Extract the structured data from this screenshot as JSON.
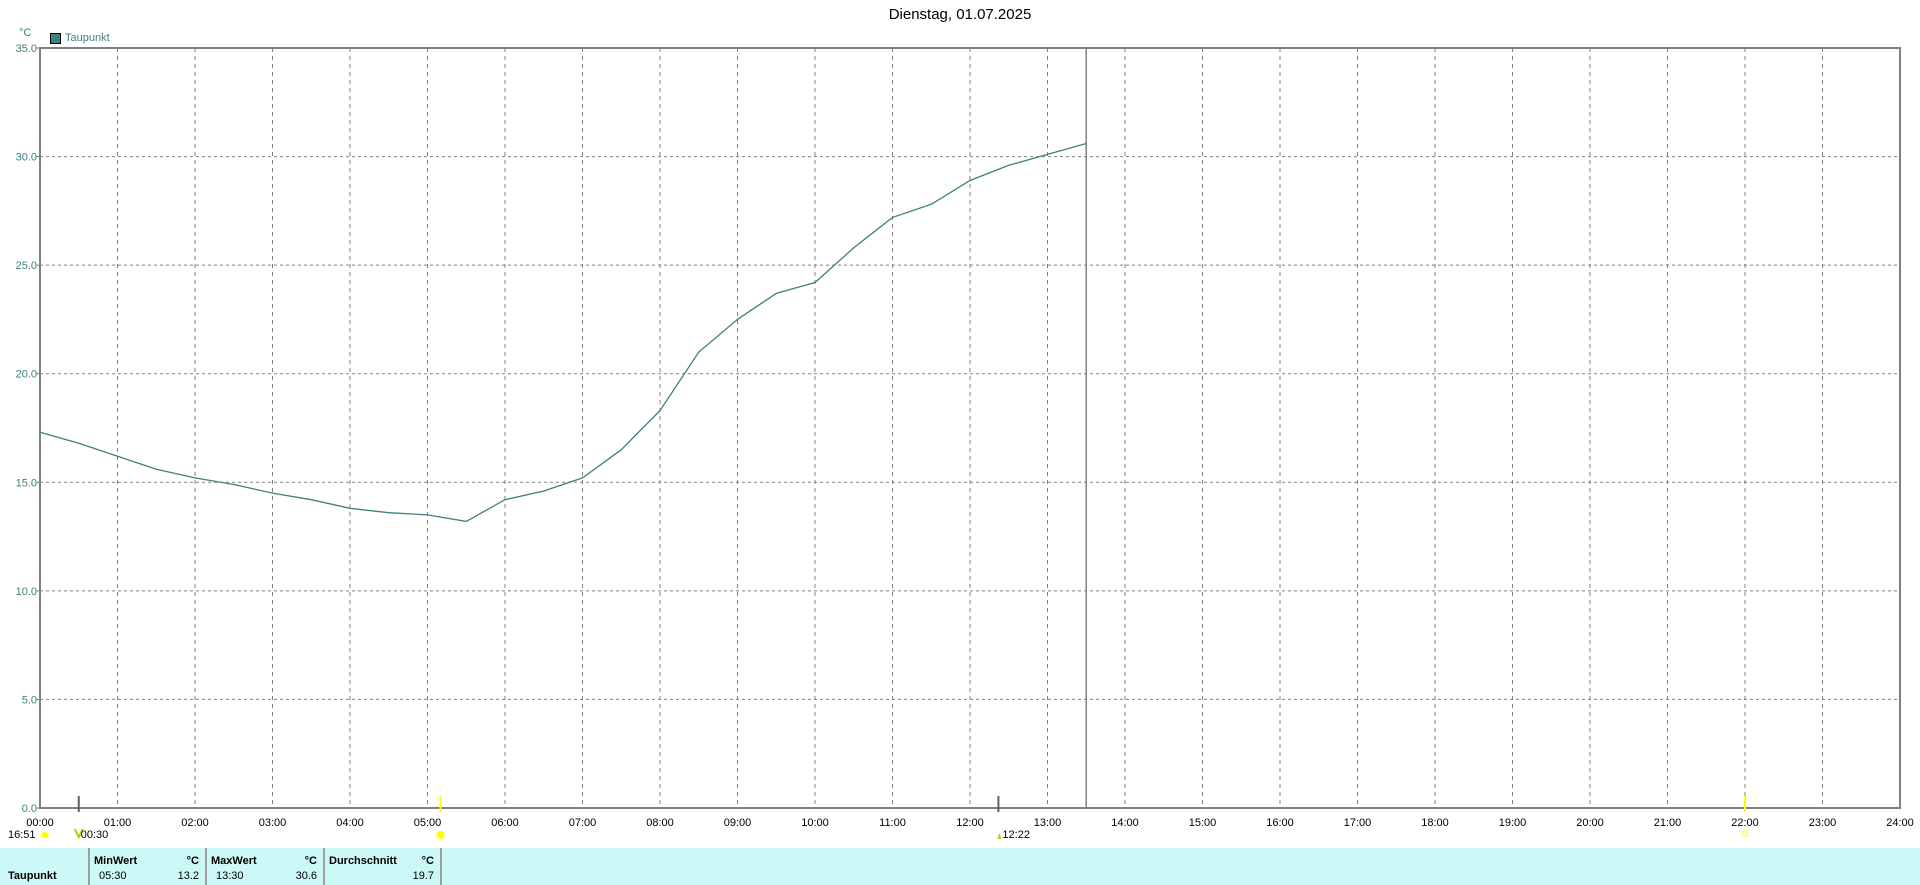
{
  "title": "Dienstag, 01.07.2025",
  "colors": {
    "series": "#408080",
    "grid": "#808080",
    "axis": "#808080",
    "stats_bg": "#ccf8f8",
    "sun_marker": "#ffff00"
  },
  "chart_data": {
    "type": "line",
    "title": "Dienstag, 01.07.2025",
    "ylabel": "°C",
    "xlabel": "",
    "ylim": [
      0,
      35
    ],
    "xlim": [
      "00:00",
      "24:00"
    ],
    "grid": true,
    "legend": "top-left",
    "y_ticks": [
      "0.0",
      "5.0",
      "10.0",
      "15.0",
      "20.0",
      "25.0",
      "30.0",
      "35.0"
    ],
    "x_ticks": [
      "00:00",
      "01:00",
      "02:00",
      "03:00",
      "04:00",
      "05:00",
      "06:00",
      "07:00",
      "08:00",
      "09:00",
      "10:00",
      "11:00",
      "12:00",
      "13:00",
      "14:00",
      "15:00",
      "16:00",
      "17:00",
      "18:00",
      "19:00",
      "20:00",
      "21:00",
      "22:00",
      "23:00",
      "24:00"
    ],
    "current_time": "13:30",
    "series": [
      {
        "name": "Taupunkt",
        "color": "#408080",
        "x": [
          "00:00",
          "00:30",
          "01:00",
          "01:30",
          "02:00",
          "02:30",
          "03:00",
          "03:30",
          "04:00",
          "04:30",
          "05:00",
          "05:30",
          "06:00",
          "06:30",
          "07:00",
          "07:30",
          "08:00",
          "08:30",
          "09:00",
          "09:30",
          "10:00",
          "10:30",
          "11:00",
          "11:30",
          "12:00",
          "12:30",
          "13:00",
          "13:30"
        ],
        "values": [
          17.3,
          16.8,
          16.2,
          15.6,
          15.2,
          14.9,
          14.5,
          14.2,
          13.8,
          13.6,
          13.5,
          13.2,
          14.2,
          14.6,
          15.2,
          16.5,
          18.3,
          21.0,
          22.5,
          23.7,
          24.2,
          25.8,
          27.2,
          27.8,
          28.9,
          29.6,
          30.1,
          30.6
        ]
      }
    ]
  },
  "astro": {
    "moonrise_prev": "16:51",
    "moonset": "00:30",
    "sunrise": "05:10",
    "moon_event": "12:22",
    "sunset": "22:00"
  },
  "stats": {
    "row_label": "Taupunkt",
    "min": {
      "header": "MinWert",
      "unit": "°C",
      "time": "05:30",
      "value": "13.2"
    },
    "max": {
      "header": "MaxWert",
      "unit": "°C",
      "time": "13:30",
      "value": "30.6"
    },
    "avg": {
      "header": "Durchschnitt",
      "unit": "°C",
      "value": "19.7"
    }
  }
}
